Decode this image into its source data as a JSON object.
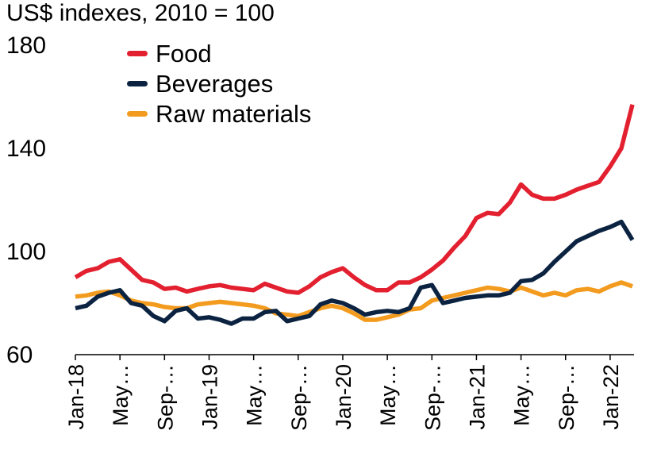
{
  "chart_data": {
    "type": "line",
    "title": "US$ indexes, 2010 = 100",
    "xlabel": "",
    "ylabel": "",
    "ylim": [
      60,
      180
    ],
    "yticks": [
      "180",
      "140",
      "100",
      "60"
    ],
    "ytick_values": [
      180,
      140,
      100,
      60
    ],
    "x": [
      "Jan-18",
      "Feb-18",
      "Mar-18",
      "Apr-18",
      "May-18",
      "Jun-18",
      "Jul-18",
      "Aug-18",
      "Sep-18",
      "Oct-18",
      "Nov-18",
      "Dec-18",
      "Jan-19",
      "Feb-19",
      "Mar-19",
      "Apr-19",
      "May-19",
      "Jun-19",
      "Jul-19",
      "Aug-19",
      "Sep-19",
      "Oct-19",
      "Nov-19",
      "Dec-19",
      "Jan-20",
      "Feb-20",
      "Mar-20",
      "Apr-20",
      "May-20",
      "Jun-20",
      "Jul-20",
      "Aug-20",
      "Sep-20",
      "Oct-20",
      "Nov-20",
      "Dec-20",
      "Jan-21",
      "Feb-21",
      "Mar-21",
      "Apr-21",
      "May-21",
      "Jun-21",
      "Jul-21",
      "Aug-21",
      "Sep-21",
      "Oct-21",
      "Nov-21",
      "Dec-21",
      "Jan-22",
      "Feb-22",
      "Mar-22"
    ],
    "xtick_labels": [
      "Jan-18",
      "May…",
      "Sep-…",
      "Jan-19",
      "May…",
      "Sep-…",
      "Jan-20",
      "May…",
      "Sep-…",
      "Jan-21",
      "May…",
      "Sep-…",
      "Jan-22"
    ],
    "xtick_index": [
      0,
      4,
      8,
      12,
      16,
      20,
      24,
      28,
      32,
      36,
      40,
      44,
      48
    ],
    "legend": "top-left",
    "grid": false,
    "series": [
      {
        "name": "Food",
        "color": "#e3202f",
        "values": [
          90,
          92.5,
          93.5,
          96,
          97,
          93,
          89,
          88,
          85.5,
          86,
          84.5,
          85.5,
          86.5,
          87,
          86,
          85.5,
          85,
          87.5,
          86,
          84.5,
          84,
          86.5,
          90,
          92,
          93.5,
          90,
          87,
          85,
          85,
          88,
          88,
          90,
          93,
          96.5,
          101.5,
          106,
          113,
          115,
          114.5,
          119,
          126,
          122,
          120.5,
          120.5,
          122,
          124,
          125.5,
          127,
          133,
          140,
          157
        ]
      },
      {
        "name": "Beverages",
        "color": "#0b2341",
        "values": [
          78,
          79,
          82.5,
          84,
          85,
          80,
          79,
          75,
          73,
          77,
          78,
          74,
          74.5,
          73.5,
          72,
          74,
          74,
          76.5,
          77,
          73,
          74,
          75,
          79.5,
          81,
          80,
          78,
          75.5,
          76.5,
          77,
          76.5,
          78,
          86,
          87,
          80,
          81,
          82,
          82.5,
          83,
          83,
          84,
          88.5,
          89,
          91.5,
          96,
          100,
          104,
          106,
          108,
          109.5,
          111.5,
          104.5
        ]
      },
      {
        "name": "Raw materials",
        "color": "#f39b1e",
        "values": [
          82.5,
          83,
          84,
          84.5,
          83,
          81,
          80,
          79.5,
          78.5,
          78,
          78,
          79.5,
          80,
          80.5,
          80,
          79.5,
          79,
          78,
          76,
          75.5,
          75,
          76.5,
          78,
          79,
          78,
          76,
          73.5,
          73.5,
          74.5,
          75.5,
          77.5,
          78,
          81,
          82,
          83,
          84,
          85,
          86,
          85.5,
          84.5,
          86,
          84.5,
          83,
          84,
          83,
          85,
          85.5,
          84.5,
          86.5,
          88,
          86.5
        ]
      }
    ]
  }
}
